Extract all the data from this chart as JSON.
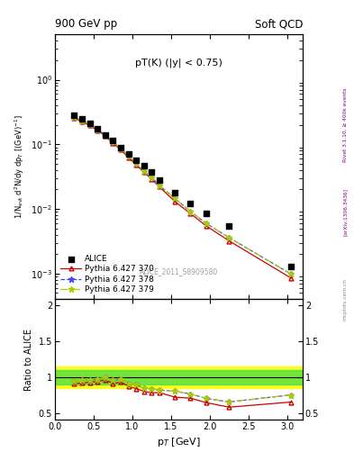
{
  "title_left": "900 GeV pp",
  "title_right": "Soft QCD",
  "plot_label": "pT(K) (|y| < 0.75)",
  "watermark": "ALICE_2011_S8909580",
  "right_label_top": "Rivet 3.1.10, ≥ 400k events",
  "right_label_bottom": "[arXiv:1306.3436]",
  "right_label_url": "mcplots.cern.ch",
  "xlabel": "p$_T$ [GeV]",
  "ylabel_top": "1/N$_{evt}$ d$^2$N/dy dp$_T$ [(GeV)$^{-1}$]",
  "ylabel_bottom": "Ratio to ALICE",
  "alice_pt": [
    0.25,
    0.35,
    0.45,
    0.55,
    0.65,
    0.75,
    0.85,
    0.95,
    1.05,
    1.15,
    1.25,
    1.35,
    1.55,
    1.75,
    1.95,
    2.25,
    3.05
  ],
  "alice_y": [
    0.28,
    0.245,
    0.21,
    0.175,
    0.14,
    0.115,
    0.088,
    0.072,
    0.057,
    0.046,
    0.037,
    0.028,
    0.018,
    0.012,
    0.0085,
    0.0055,
    0.0013
  ],
  "py370_pt": [
    0.25,
    0.35,
    0.45,
    0.55,
    0.65,
    0.75,
    0.85,
    0.95,
    1.05,
    1.15,
    1.25,
    1.35,
    1.55,
    1.75,
    1.95,
    2.25,
    3.05
  ],
  "py370_y": [
    0.255,
    0.225,
    0.195,
    0.165,
    0.135,
    0.105,
    0.082,
    0.063,
    0.048,
    0.037,
    0.029,
    0.022,
    0.013,
    0.0085,
    0.0055,
    0.0032,
    0.00085
  ],
  "py378_pt": [
    0.25,
    0.35,
    0.45,
    0.55,
    0.65,
    0.75,
    0.85,
    0.95,
    1.05,
    1.15,
    1.25,
    1.35,
    1.55,
    1.75,
    1.95,
    2.25,
    3.05
  ],
  "py378_y": [
    0.265,
    0.235,
    0.202,
    0.17,
    0.14,
    0.11,
    0.086,
    0.066,
    0.051,
    0.039,
    0.031,
    0.023,
    0.0145,
    0.0092,
    0.006,
    0.0036,
    0.00098
  ],
  "py379_pt": [
    0.25,
    0.35,
    0.45,
    0.55,
    0.65,
    0.75,
    0.85,
    0.95,
    1.05,
    1.15,
    1.25,
    1.35,
    1.55,
    1.75,
    1.95,
    2.25,
    3.05
  ],
  "py379_y": [
    0.265,
    0.235,
    0.202,
    0.17,
    0.14,
    0.11,
    0.086,
    0.066,
    0.051,
    0.039,
    0.031,
    0.023,
    0.0145,
    0.0092,
    0.006,
    0.0036,
    0.00098
  ],
  "ratio370": [
    0.91,
    0.92,
    0.93,
    0.94,
    0.965,
    0.913,
    0.932,
    0.875,
    0.842,
    0.804,
    0.784,
    0.786,
    0.722,
    0.708,
    0.647,
    0.582,
    0.654
  ],
  "ratio378": [
    0.946,
    0.959,
    0.962,
    0.971,
    1.0,
    0.957,
    0.977,
    0.917,
    0.895,
    0.848,
    0.838,
    0.821,
    0.806,
    0.767,
    0.706,
    0.655,
    0.754
  ],
  "ratio379": [
    0.946,
    0.959,
    0.962,
    0.971,
    1.005,
    0.957,
    0.977,
    0.917,
    0.895,
    0.848,
    0.84,
    0.821,
    0.806,
    0.767,
    0.706,
    0.655,
    0.754
  ],
  "band_yellow_lo": 0.85,
  "band_yellow_hi": 1.15,
  "band_green_lo": 0.9,
  "band_green_hi": 1.1,
  "color_alice": "#000000",
  "color_370": "#cc0000",
  "color_378": "#4444ff",
  "color_379": "#aacc00",
  "ylim_top_lo": 0.0004,
  "ylim_top_hi": 5.0,
  "ylim_bottom_lo": 0.41,
  "ylim_bottom_hi": 2.09,
  "xlim_lo": 0.0,
  "xlim_hi": 3.2,
  "yticks_bottom": [
    0.5,
    1.0,
    1.5,
    2.0
  ],
  "ytick_labels_bottom": [
    "0.5",
    "1",
    "1.5",
    "2"
  ]
}
